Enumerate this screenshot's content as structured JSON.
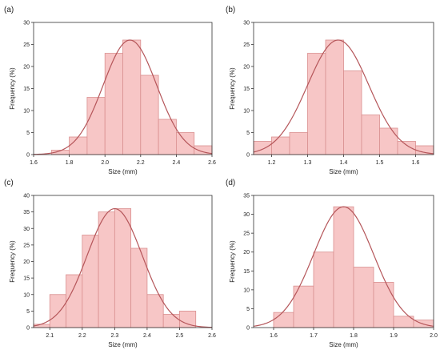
{
  "colors": {
    "bar_fill": "#f7c6c6",
    "bar_stroke": "#d98f8f",
    "curve": "#b5565a",
    "axis": "#333333",
    "text": "#222222"
  },
  "chart_data": [
    {
      "type": "bar",
      "panel_label": "(a)",
      "xlabel": "Size (mm)",
      "ylabel": "Frequency (%)",
      "xlim": [
        1.6,
        2.6
      ],
      "ylim": [
        0,
        30
      ],
      "xticks": [
        1.6,
        1.8,
        2.0,
        2.2,
        2.4,
        2.6
      ],
      "xtick_labels": [
        "1.6",
        "1.8",
        "2.0",
        "2.2",
        "2.4",
        "2.6"
      ],
      "yticks": [
        0,
        5,
        10,
        15,
        20,
        25,
        30
      ],
      "ytick_labels": [
        "0",
        "5",
        "10",
        "15",
        "20",
        "25",
        "30"
      ],
      "bins": [
        [
          1.6,
          1.7,
          0
        ],
        [
          1.7,
          1.8,
          1
        ],
        [
          1.8,
          1.9,
          4
        ],
        [
          1.9,
          2.0,
          13
        ],
        [
          2.0,
          2.1,
          23
        ],
        [
          2.1,
          2.2,
          26
        ],
        [
          2.2,
          2.3,
          18
        ],
        [
          2.3,
          2.4,
          8
        ],
        [
          2.4,
          2.5,
          5
        ],
        [
          2.5,
          2.6,
          2
        ]
      ],
      "fit": {
        "type": "normal",
        "mean": 2.14,
        "sd": 0.15,
        "peak": 26
      }
    },
    {
      "type": "bar",
      "panel_label": "(b)",
      "xlabel": "Size (mm)",
      "ylabel": "Frequency (%)",
      "xlim": [
        1.15,
        1.65
      ],
      "ylim": [
        0,
        30
      ],
      "xticks": [
        1.2,
        1.3,
        1.4,
        1.5,
        1.6
      ],
      "xtick_labels": [
        "1.2",
        "1.3",
        "1.4",
        "1.5",
        "1.6"
      ],
      "yticks": [
        0,
        5,
        10,
        15,
        20,
        25,
        30
      ],
      "ytick_labels": [
        "0",
        "5",
        "10",
        "15",
        "20",
        "25",
        "30"
      ],
      "bins": [
        [
          1.15,
          1.2,
          3
        ],
        [
          1.2,
          1.25,
          4
        ],
        [
          1.25,
          1.3,
          5
        ],
        [
          1.3,
          1.35,
          23
        ],
        [
          1.35,
          1.4,
          26
        ],
        [
          1.4,
          1.45,
          19
        ],
        [
          1.45,
          1.5,
          9
        ],
        [
          1.5,
          1.55,
          6
        ],
        [
          1.55,
          1.6,
          3
        ],
        [
          1.6,
          1.65,
          2
        ]
      ],
      "fit": {
        "type": "normal",
        "mean": 1.385,
        "sd": 0.085,
        "peak": 26
      }
    },
    {
      "type": "bar",
      "panel_label": "(c)",
      "xlabel": "Size (mm)",
      "ylabel": "Frequency (%)",
      "xlim": [
        2.05,
        2.6
      ],
      "ylim": [
        0,
        40
      ],
      "xticks": [
        2.1,
        2.2,
        2.3,
        2.4,
        2.5,
        2.6
      ],
      "xtick_labels": [
        "2.1",
        "2.2",
        "2.3",
        "2.4",
        "2.5",
        "2.6"
      ],
      "yticks": [
        0,
        5,
        10,
        15,
        20,
        25,
        30,
        35,
        40
      ],
      "ytick_labels": [
        "0",
        "5",
        "10",
        "15",
        "20",
        "25",
        "30",
        "35",
        "40"
      ],
      "bins": [
        [
          2.05,
          2.1,
          1
        ],
        [
          2.1,
          2.15,
          10
        ],
        [
          2.15,
          2.2,
          16
        ],
        [
          2.2,
          2.25,
          28
        ],
        [
          2.25,
          2.3,
          35
        ],
        [
          2.3,
          2.35,
          36
        ],
        [
          2.35,
          2.4,
          24
        ],
        [
          2.4,
          2.45,
          10
        ],
        [
          2.45,
          2.5,
          4
        ],
        [
          2.5,
          2.55,
          5
        ],
        [
          2.55,
          2.6,
          0
        ]
      ],
      "fit": {
        "type": "normal",
        "mean": 2.3,
        "sd": 0.085,
        "peak": 36
      }
    },
    {
      "type": "bar",
      "panel_label": "(d)",
      "xlabel": "Size (mm)",
      "ylabel": "Frequency (%)",
      "xlim": [
        1.55,
        2.0
      ],
      "ylim": [
        0,
        35
      ],
      "xticks": [
        1.6,
        1.7,
        1.8,
        1.9,
        2.0
      ],
      "xtick_labels": [
        "1.6",
        "1.7",
        "1.8",
        "1.9",
        "2.0"
      ],
      "yticks": [
        0,
        5,
        10,
        15,
        20,
        25,
        30,
        35
      ],
      "ytick_labels": [
        "0",
        "5",
        "10",
        "15",
        "20",
        "25",
        "30",
        "35"
      ],
      "bins": [
        [
          1.55,
          1.6,
          0
        ],
        [
          1.6,
          1.65,
          4
        ],
        [
          1.65,
          1.7,
          11
        ],
        [
          1.7,
          1.75,
          20
        ],
        [
          1.75,
          1.8,
          32
        ],
        [
          1.8,
          1.85,
          16
        ],
        [
          1.85,
          1.9,
          12
        ],
        [
          1.9,
          1.95,
          3
        ],
        [
          1.95,
          2.0,
          2
        ]
      ],
      "fit": {
        "type": "normal",
        "mean": 1.775,
        "sd": 0.075,
        "peak": 32
      }
    }
  ]
}
